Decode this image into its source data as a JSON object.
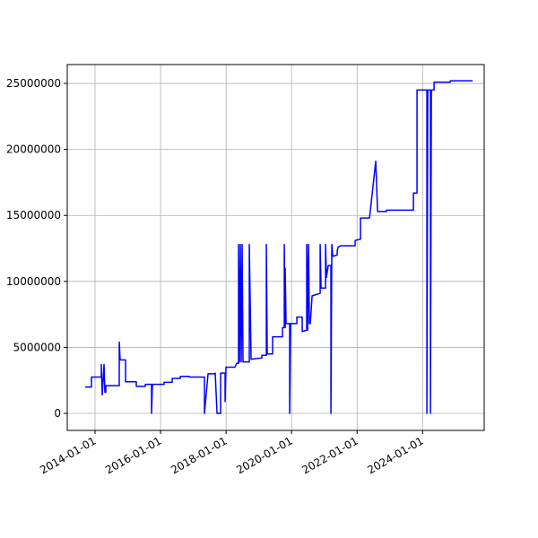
{
  "chart_data": {
    "type": "line",
    "x": [
      "2013-09-13",
      "2013-11-22",
      "2013-11-22",
      "2014-03-12",
      "2014-03-12",
      "2014-03-22",
      "2014-04-11",
      "2014-04-21",
      "2014-05-01",
      "2014-05-01",
      "2014-09-28",
      "2014-09-28",
      "2014-10-08",
      "2014-12-07",
      "2014-12-07",
      "2015-04-06",
      "2015-04-06",
      "2015-07-15",
      "2015-07-15",
      "2015-09-23",
      "2015-09-23",
      "2015-10-03",
      "2016-02-10",
      "2016-02-10",
      "2016-05-10",
      "2016-05-10",
      "2016-08-08",
      "2016-08-08",
      "2016-11-16",
      "2016-11-16",
      "2017-05-05",
      "2017-05-05",
      "2017-06-14",
      "2017-09-02",
      "2017-09-02",
      "2017-09-22",
      "2017-11-01",
      "2017-11-01",
      "2017-12-21",
      "2017-12-21",
      "2017-12-31",
      "2018-04-10",
      "2018-04-30",
      "2018-05-20",
      "2018-05-20",
      "2018-05-30",
      "2018-06-09",
      "2018-06-19",
      "2018-06-29",
      "2018-07-09",
      "2018-09-17",
      "2018-09-17",
      "2018-10-07",
      "2019-02-04",
      "2019-02-04",
      "2019-03-26",
      "2019-03-26",
      "2019-04-05",
      "2019-06-04",
      "2019-06-04",
      "2019-09-22",
      "2019-09-22",
      "2019-10-12",
      "2019-10-12",
      "2019-10-22",
      "2019-10-22",
      "2019-11-01",
      "2019-12-11",
      "2019-12-11",
      "2019-12-21",
      "2020-02-29",
      "2020-02-29",
      "2020-04-29",
      "2020-04-29",
      "2020-06-18",
      "2020-06-18",
      "2020-06-28",
      "2020-07-08",
      "2020-07-18",
      "2020-07-28",
      "2020-08-17",
      "2020-11-15",
      "2020-11-15",
      "2020-11-25",
      "2021-01-14",
      "2021-01-14",
      "2021-01-24",
      "2021-02-13",
      "2021-03-15",
      "2021-03-15",
      "2021-03-25",
      "2021-04-04",
      "2021-05-24",
      "2021-05-24",
      "2021-06-03",
      "2021-07-03",
      "2021-12-10",
      "2021-12-10",
      "2022-02-08",
      "2022-02-08",
      "2022-05-19",
      "2022-07-28",
      "2022-08-17",
      "2022-11-25",
      "2022-11-25",
      "2023-09-21",
      "2023-09-21",
      "2023-10-31",
      "2023-10-31",
      "2024-02-18",
      "2024-02-18",
      "2024-02-28",
      "2024-03-29",
      "2024-03-29",
      "2024-04-08",
      "2024-05-08",
      "2024-05-08",
      "2024-11-04",
      "2024-11-04",
      "2025-07-12"
    ],
    "series": [
      {
        "color": "#0000ff",
        "values": [
          2000000,
          2000000,
          2750000,
          2750000,
          3700000,
          1400000,
          3700000,
          1600000,
          1600000,
          2100000,
          2100000,
          5400000,
          4050000,
          4050000,
          2400000,
          2400000,
          2050000,
          2050000,
          2200000,
          2200000,
          0,
          2200000,
          2200000,
          2350000,
          2350000,
          2650000,
          2650000,
          2800000,
          2800000,
          2750000,
          2750000,
          0,
          3000000,
          3000000,
          3050000,
          0,
          0,
          3050000,
          3050000,
          900000,
          3500000,
          3500000,
          3800000,
          3800000,
          12800000,
          3900000,
          12800000,
          3900000,
          12800000,
          3900000,
          3900000,
          12800000,
          4100000,
          4200000,
          4400000,
          4400000,
          12800000,
          4500000,
          4500000,
          5800000,
          5800000,
          6500000,
          6500000,
          12800000,
          6500000,
          11000000,
          6800000,
          6800000,
          0,
          6800000,
          6800000,
          7300000,
          7300000,
          6200000,
          6300000,
          12800000,
          6300000,
          12800000,
          6800000,
          6800000,
          8900000,
          9100000,
          12800000,
          9500000,
          9500000,
          12800000,
          10300000,
          11200000,
          11200000,
          0,
          12800000,
          11900000,
          12000000,
          12300000,
          12600000,
          12700000,
          12700000,
          13100000,
          13200000,
          14800000,
          14800000,
          19100000,
          15300000,
          15300000,
          15400000,
          15400000,
          16700000,
          16700000,
          24500000,
          24500000,
          0,
          24500000,
          24500000,
          0,
          24500000,
          24500000,
          25100000,
          25100000,
          25200000,
          25200000
        ]
      }
    ],
    "xlim": [
      "2013-02-25",
      "2025-11-18"
    ],
    "xticks": [
      "2014-01-01",
      "2016-01-01",
      "2018-01-01",
      "2020-01-01",
      "2022-01-01",
      "2024-01-01"
    ],
    "ylim": [
      -1290000,
      26430000
    ],
    "yticks": [
      0,
      5000000,
      10000000,
      15000000,
      20000000,
      25000000
    ],
    "grid": true
  }
}
